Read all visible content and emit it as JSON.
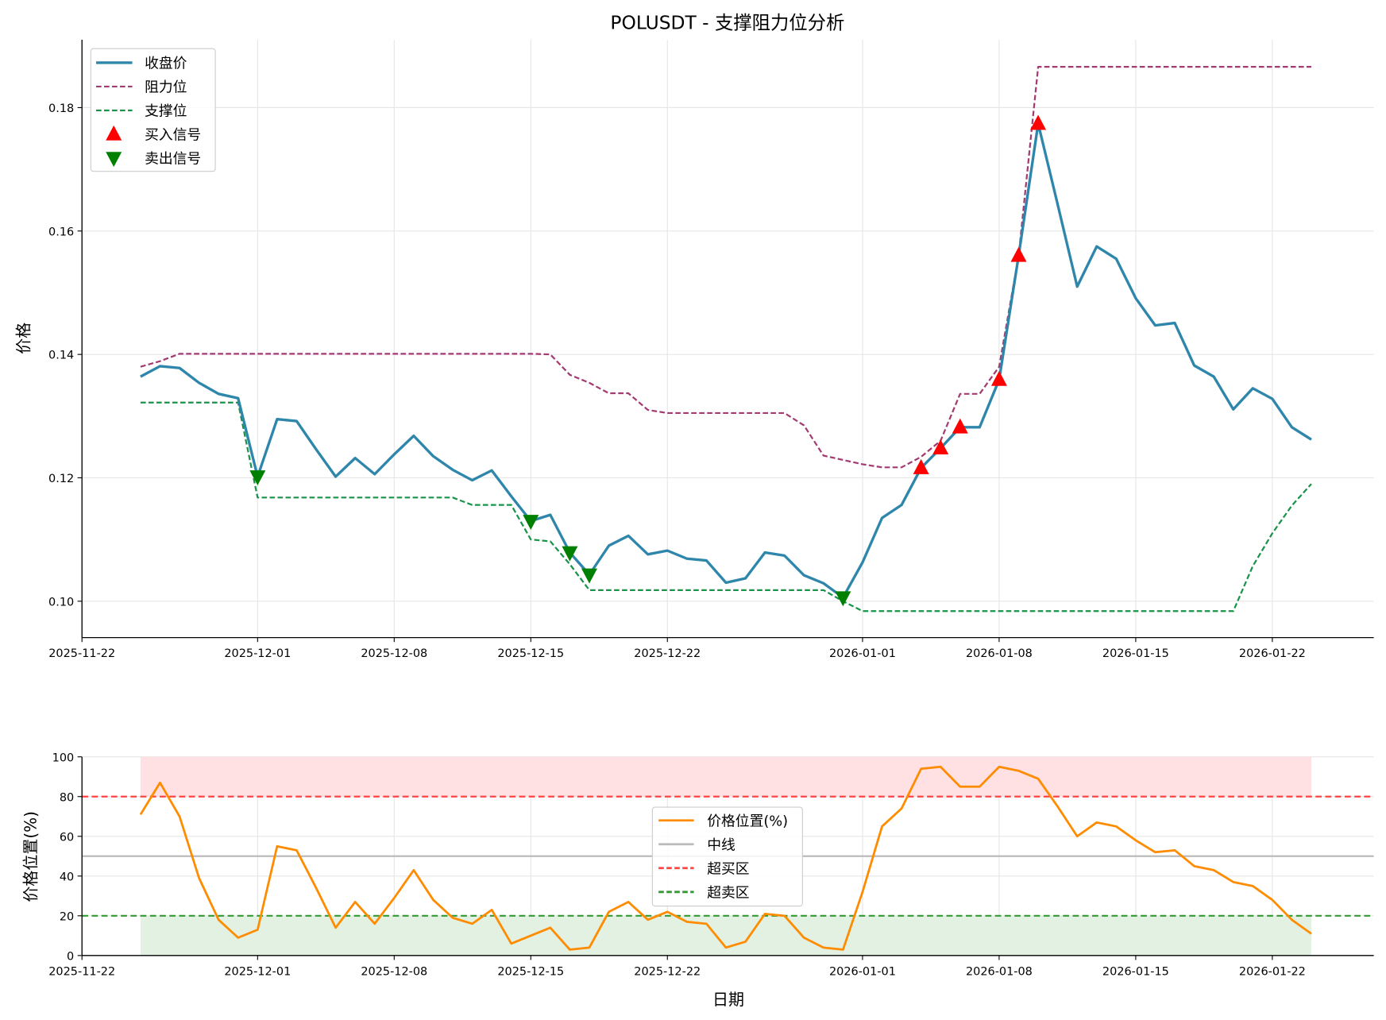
{
  "chart_data": [
    {
      "type": "line",
      "title": "POLUSDT - 支撑阻力位分析",
      "xlabel": "",
      "ylabel": "价格",
      "xlim": [
        "2025-11-22",
        "2026-01-27"
      ],
      "ylim": [
        0.0941,
        0.191
      ],
      "yticks": [
        0.1,
        0.12,
        0.14,
        0.16,
        0.18
      ],
      "ytick_labels": [
        "0.10",
        "0.12",
        "0.14",
        "0.16",
        "0.18"
      ],
      "xticks": [
        "2025-11-22",
        "2025-12-01",
        "2025-12-08",
        "2025-12-15",
        "2025-12-22",
        "2026-01-01",
        "2026-01-08",
        "2026-01-15",
        "2026-01-22"
      ],
      "grid": true,
      "legend_placement": "upper-left",
      "dates": [
        "2025-11-25",
        "2025-11-26",
        "2025-11-27",
        "2025-11-28",
        "2025-11-29",
        "2025-11-30",
        "2025-12-01",
        "2025-12-02",
        "2025-12-03",
        "2025-12-04",
        "2025-12-05",
        "2025-12-06",
        "2025-12-07",
        "2025-12-08",
        "2025-12-09",
        "2025-12-10",
        "2025-12-11",
        "2025-12-12",
        "2025-12-13",
        "2025-12-14",
        "2025-12-15",
        "2025-12-16",
        "2025-12-17",
        "2025-12-18",
        "2025-12-19",
        "2025-12-20",
        "2025-12-21",
        "2025-12-22",
        "2025-12-23",
        "2025-12-24",
        "2025-12-25",
        "2025-12-26",
        "2025-12-27",
        "2025-12-28",
        "2025-12-29",
        "2025-12-30",
        "2025-12-31",
        "2026-01-01",
        "2026-01-02",
        "2026-01-03",
        "2026-01-04",
        "2026-01-05",
        "2026-01-06",
        "2026-01-07",
        "2026-01-08",
        "2026-01-09",
        "2026-01-10",
        "2026-01-11",
        "2026-01-12",
        "2026-01-13",
        "2026-01-14",
        "2026-01-15",
        "2026-01-16",
        "2026-01-17",
        "2026-01-18",
        "2026-01-19",
        "2026-01-20",
        "2026-01-21",
        "2026-01-22",
        "2026-01-23",
        "2026-01-24"
      ],
      "series": [
        {
          "name": "收盘价",
          "style": "solid",
          "color": "#2E86AB",
          "values": [
            0.1364,
            0.1381,
            0.1378,
            0.1354,
            0.1336,
            0.1329,
            0.1202,
            0.1295,
            0.1292,
            0.1246,
            0.1202,
            0.1232,
            0.1206,
            0.1238,
            0.1268,
            0.1235,
            0.1213,
            0.1196,
            0.1212,
            0.117,
            0.113,
            0.114,
            0.1079,
            0.1043,
            0.109,
            0.1106,
            0.1076,
            0.1082,
            0.1069,
            0.1066,
            0.103,
            0.1037,
            0.1079,
            0.1074,
            0.1042,
            0.1029,
            0.1006,
            0.1063,
            0.1135,
            0.1156,
            0.1216,
            0.1248,
            0.1282,
            0.1282,
            0.1359,
            0.156,
            0.1774,
            0.1643,
            0.151,
            0.1575,
            0.1555,
            0.1491,
            0.1447,
            0.1451,
            0.1382,
            0.1364,
            0.1311,
            0.1345,
            0.1328,
            0.1282,
            0.1262
          ]
        },
        {
          "name": "阻力位",
          "style": "dashed",
          "color": "#A23B72",
          "values": [
            0.138,
            0.1389,
            0.1401,
            0.1401,
            0.1401,
            0.1401,
            0.1401,
            0.1401,
            0.1401,
            0.1401,
            0.1401,
            0.1401,
            0.1401,
            0.1401,
            0.1401,
            0.1401,
            0.1401,
            0.1401,
            0.1401,
            0.1401,
            0.1401,
            0.14,
            0.1367,
            0.1354,
            0.1337,
            0.1337,
            0.131,
            0.1305,
            0.1305,
            0.1305,
            0.1305,
            0.1305,
            0.1305,
            0.1305,
            0.1285,
            0.1236,
            0.1229,
            0.1222,
            0.1217,
            0.1217,
            0.1234,
            0.126,
            0.1336,
            0.1336,
            0.138,
            0.156,
            0.1866,
            0.1866,
            0.1866,
            0.1866,
            0.1866,
            0.1866,
            0.1866,
            0.1866,
            0.1866,
            0.1866,
            0.1866,
            0.1866,
            0.1866,
            0.1866,
            0.1866
          ]
        },
        {
          "name": "支撑位",
          "style": "dashed",
          "color": "#18944A",
          "values": [
            0.1322,
            0.1322,
            0.1322,
            0.1322,
            0.1322,
            0.1322,
            0.1168,
            0.1168,
            0.1168,
            0.1168,
            0.1168,
            0.1168,
            0.1168,
            0.1168,
            0.1168,
            0.1168,
            0.1168,
            0.1156,
            0.1156,
            0.1156,
            0.11,
            0.1097,
            0.106,
            0.1018,
            0.1018,
            0.1018,
            0.1018,
            0.1018,
            0.1018,
            0.1018,
            0.1018,
            0.1018,
            0.1018,
            0.1018,
            0.1018,
            0.1018,
            0.1,
            0.0984,
            0.0984,
            0.0984,
            0.0984,
            0.0984,
            0.0984,
            0.0984,
            0.0984,
            0.0984,
            0.0984,
            0.0984,
            0.0984,
            0.0984,
            0.0984,
            0.0984,
            0.0984,
            0.0984,
            0.0984,
            0.0984,
            0.0984,
            0.1057,
            0.111,
            0.1155,
            0.119
          ]
        }
      ],
      "markers": [
        {
          "name": "买入信号",
          "shape": "triangle-up",
          "color": "#FF0000",
          "dates": [
            "2026-01-04",
            "2026-01-05",
            "2026-01-06",
            "2026-01-08",
            "2026-01-09",
            "2026-01-10"
          ],
          "values": [
            0.1216,
            0.1248,
            0.1282,
            0.1359,
            0.156,
            0.1774
          ]
        },
        {
          "name": "卖出信号",
          "shape": "triangle-down",
          "color": "#008000",
          "dates": [
            "2025-12-01",
            "2025-12-15",
            "2025-12-17",
            "2025-12-18",
            "2025-12-31"
          ],
          "values": [
            0.1202,
            0.113,
            0.1079,
            0.1043,
            0.1006
          ]
        }
      ]
    },
    {
      "type": "line",
      "title": "",
      "xlabel": "日期",
      "ylabel": "价格位置(%)",
      "ylim": [
        0,
        100
      ],
      "yticks": [
        0,
        20,
        40,
        60,
        80,
        100
      ],
      "xticks": [
        "2025-11-22",
        "2025-12-01",
        "2025-12-08",
        "2025-12-15",
        "2025-12-22",
        "2026-01-01",
        "2026-01-08",
        "2026-01-15",
        "2026-01-22"
      ],
      "grid": true,
      "legend_placement": "center",
      "series": [
        {
          "name": "价格位置(%)",
          "style": "solid",
          "color": "#FF8C00",
          "values": [
            71,
            87,
            70,
            39,
            18,
            9,
            13,
            55,
            53,
            34,
            14,
            27,
            16,
            29,
            43,
            28,
            19,
            16,
            23,
            6,
            10,
            14,
            3,
            4,
            22,
            27,
            18,
            22,
            17,
            16,
            4,
            7,
            21,
            20,
            9,
            4,
            3,
            32,
            65,
            74,
            94,
            95,
            85,
            85,
            95,
            93,
            89,
            75,
            60,
            67,
            65,
            58,
            52,
            53,
            45,
            43,
            37,
            35,
            28,
            18,
            11
          ]
        }
      ],
      "hlines": [
        {
          "name": "中线",
          "value": 50,
          "style": "solid",
          "color": "#BBBBBB"
        },
        {
          "name": "超买区",
          "value": 80,
          "style": "dashed",
          "color": "#FF4444"
        },
        {
          "name": "超卖区",
          "value": 20,
          "style": "dashed",
          "color": "#339933"
        }
      ],
      "bands": [
        {
          "from": 80,
          "to": 100,
          "color": "#FFE0E3"
        },
        {
          "from": 0,
          "to": 20,
          "color": "#E3F1E3"
        }
      ]
    }
  ]
}
